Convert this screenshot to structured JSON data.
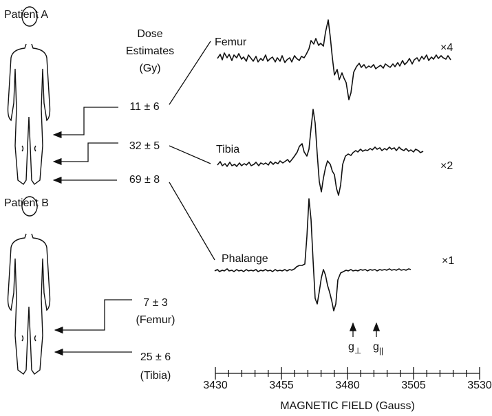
{
  "patients": [
    {
      "label": "Patient A"
    },
    {
      "label": "Patient B"
    }
  ],
  "dose_header": [
    "Dose",
    "Estimates",
    "(Gy)"
  ],
  "patient_a_doses": [
    "11 ± 6",
    "32 ± 5",
    "69 ± 8"
  ],
  "patient_b_doses": [
    {
      "dose": "7 ± 3",
      "site": "(Femur)"
    },
    {
      "dose": "25 ± 6",
      "site": "(Tibia)"
    }
  ],
  "spectra": [
    {
      "label": "Femur",
      "scale": "×4"
    },
    {
      "label": "Tibia",
      "scale": "×2"
    },
    {
      "label": "Phalange",
      "scale": "×1"
    }
  ],
  "g_markers": [
    {
      "base": "g",
      "sub": "⊥"
    },
    {
      "base": "g",
      "sub": "||"
    }
  ],
  "axis": {
    "label": "MAGNETIC FIELD (Gauss)",
    "xlim": [
      3430,
      3530
    ],
    "xticks": [
      3430,
      3455,
      3480,
      3505,
      3530
    ]
  }
}
